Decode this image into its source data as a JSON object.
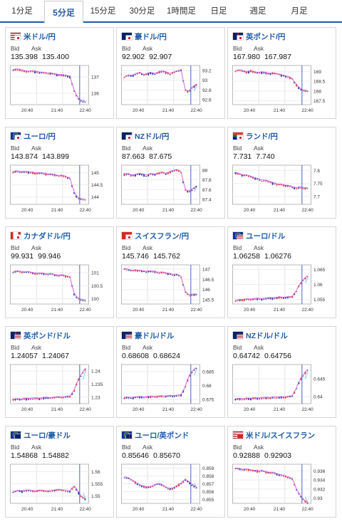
{
  "tabs": [
    {
      "label": "1分足",
      "active": false
    },
    {
      "label": "5分足",
      "active": true
    },
    {
      "label": "15分足",
      "active": false
    },
    {
      "label": "30分足",
      "active": false
    },
    {
      "label": "1時間足",
      "active": false
    },
    {
      "label": "日足",
      "active": false
    },
    {
      "label": "週足",
      "active": false
    },
    {
      "label": "月足",
      "active": false
    }
  ],
  "labels": {
    "bid": "Bid",
    "ask": "Ask"
  },
  "colors": {
    "accent": "#1d5ba8",
    "candle_up": "#e8373c",
    "candle_down": "#2f3fb5",
    "ma": "#d05ad8",
    "marker": "#4a64b9",
    "spike": "#6fc2f0"
  },
  "cards": [
    {
      "name": "米ドル/円",
      "flags": [
        "us-flag",
        "jp-flag"
      ],
      "bid": "135.398",
      "ask": "135.400",
      "chart_data": {
        "type": "candlestick",
        "yticks": [
          "137",
          "136"
        ],
        "xticks": [
          "20:40",
          "21:40",
          "22:40"
        ],
        "ylim": [
          135.3,
          137.7
        ],
        "trend": [
          137.4,
          137.45,
          137.4,
          137.35,
          137.3,
          137.35,
          137.3,
          137.25,
          137.25,
          137.2,
          137.2,
          137.15,
          137.1,
          137.1,
          137.05,
          137.0,
          136.2,
          135.7,
          135.5,
          135.45
        ],
        "break": 16
      }
    },
    {
      "name": "豪ドル/円",
      "flags": [
        "au-flag",
        "jp-flag"
      ],
      "bid": "92.902",
      "ask": "92.907",
      "chart_data": {
        "type": "candlestick",
        "yticks": [
          "93.2",
          "93",
          "92.8",
          "92.6"
        ],
        "xticks": [
          "20:40",
          "21:40",
          "22:40"
        ],
        "ylim": [
          92.5,
          93.3
        ],
        "trend": [
          93.05,
          93.1,
          93.08,
          93.12,
          93.15,
          93.1,
          93.12,
          93.15,
          93.12,
          93.15,
          93.18,
          93.15,
          93.12,
          93.15,
          93.18,
          93.2,
          92.8,
          92.75,
          92.85,
          92.9
        ],
        "break": 16
      }
    },
    {
      "name": "英ポンド/円",
      "flags": [
        "uk-flag",
        "jp-flag"
      ],
      "bid": "167.980",
      "ask": "167.987",
      "chart_data": {
        "type": "candlestick",
        "yticks": [
          "169",
          "168.5",
          "168",
          "167.5"
        ],
        "xticks": [
          "20:40",
          "21:40",
          "22:40"
        ],
        "ylim": [
          167.3,
          169.3
        ],
        "trend": [
          169.0,
          169.05,
          169.0,
          168.95,
          169.0,
          168.95,
          168.9,
          168.95,
          168.9,
          168.85,
          168.9,
          168.85,
          168.8,
          168.75,
          168.7,
          168.6,
          168.3,
          168.1,
          168.0,
          167.98
        ],
        "break": 17
      }
    },
    {
      "name": "ユーロ/円",
      "flags": [
        "eu-flag",
        "jp-flag"
      ],
      "bid": "143.874",
      "ask": "143.899",
      "chart_data": {
        "type": "candlestick",
        "yticks": [
          "145",
          "144.5",
          "144"
        ],
        "xticks": [
          "20:40",
          "21:40",
          "22:40"
        ],
        "ylim": [
          143.7,
          145.3
        ],
        "trend": [
          145.0,
          145.05,
          145.0,
          145.02,
          145.0,
          144.98,
          144.95,
          144.97,
          144.95,
          144.9,
          144.92,
          144.88,
          144.85,
          144.87,
          144.8,
          144.75,
          144.2,
          143.95,
          143.9,
          143.88
        ],
        "break": 16
      }
    },
    {
      "name": "NZドル/円",
      "flags": [
        "nz-flag",
        "jp-flag"
      ],
      "bid": "87.663",
      "ask": "87.675",
      "chart_data": {
        "type": "candlestick",
        "yticks": [
          "88",
          "87.8",
          "87.6",
          "87.4"
        ],
        "xticks": [
          "20:40",
          "21:40",
          "22:40"
        ],
        "ylim": [
          87.3,
          88.1
        ],
        "trend": [
          87.9,
          87.92,
          87.88,
          87.9,
          87.92,
          87.9,
          87.88,
          87.92,
          87.9,
          87.93,
          87.95,
          87.92,
          87.95,
          87.98,
          88.0,
          87.95,
          87.6,
          87.55,
          87.6,
          87.66
        ],
        "break": 16
      }
    },
    {
      "name": "ランド/円",
      "flags": [
        "za-flag",
        "jp-flag"
      ],
      "bid": "7.731",
      "ask": "7.740",
      "chart_data": {
        "type": "candlestick",
        "yticks": [
          "7.8",
          "7.75",
          "7.7"
        ],
        "xticks": [
          "20:40",
          "21:40",
          "22:40"
        ],
        "ylim": [
          7.67,
          7.82
        ],
        "trend": [
          7.79,
          7.785,
          7.78,
          7.78,
          7.775,
          7.77,
          7.765,
          7.76,
          7.76,
          7.755,
          7.75,
          7.745,
          7.745,
          7.74,
          7.74,
          7.735,
          7.73,
          7.735,
          7.73,
          7.731
        ],
        "break": 18
      }
    },
    {
      "name": "カナダドル/円",
      "flags": [
        "ca-flag",
        "jp-flag"
      ],
      "bid": "99.931",
      "ask": "99.946",
      "chart_data": {
        "type": "candlestick",
        "yticks": [
          "101",
          "100.5",
          "100"
        ],
        "xticks": [
          "20:40",
          "21:40",
          "22:40"
        ],
        "ylim": [
          99.8,
          101.3
        ],
        "trend": [
          101.0,
          101.05,
          101.02,
          101.0,
          101.02,
          100.98,
          100.95,
          100.97,
          100.95,
          100.92,
          100.95,
          100.9,
          100.88,
          100.9,
          100.85,
          100.82,
          100.2,
          100.0,
          99.95,
          99.93
        ],
        "break": 16
      }
    },
    {
      "name": "スイスフラン/円",
      "flags": [
        "ch-flag",
        "jp-flag"
      ],
      "bid": "145.746",
      "ask": "145.762",
      "chart_data": {
        "type": "candlestick",
        "yticks": [
          "147",
          "146.5",
          "146",
          "145.5"
        ],
        "xticks": [
          "20:40",
          "21:40",
          "22:40"
        ],
        "ylim": [
          145.3,
          147.2
        ],
        "trend": [
          147.0,
          146.95,
          146.9,
          146.92,
          146.9,
          146.88,
          146.85,
          146.88,
          146.85,
          146.8,
          146.82,
          146.78,
          146.75,
          146.7,
          146.72,
          146.6,
          145.9,
          145.7,
          145.75,
          145.75
        ],
        "break": 16
      }
    },
    {
      "name": "ユーロ/ドル",
      "flags": [
        "eu-flag",
        "us-flag"
      ],
      "bid": "1.06258",
      "ask": "1.06276",
      "chart_data": {
        "type": "candlestick",
        "yticks": [
          "1.065",
          "1.06",
          "1.055"
        ],
        "xticks": [
          "20:40",
          "21:40",
          "22:40"
        ],
        "ylim": [
          1.0535,
          1.0665
        ],
        "trend": [
          1.0545,
          1.0548,
          1.0547,
          1.055,
          1.0549,
          1.0551,
          1.0552,
          1.055,
          1.0553,
          1.0554,
          1.0553,
          1.0555,
          1.0556,
          1.0555,
          1.0557,
          1.0558,
          1.0575,
          1.06,
          1.0615,
          1.0626
        ],
        "break": 16
      }
    },
    {
      "name": "英ポンド/ドル",
      "flags": [
        "uk-flag",
        "us-flag"
      ],
      "bid": "1.24057",
      "ask": "1.24067",
      "chart_data": {
        "type": "candlestick",
        "yticks": [
          "1.24",
          "1.235",
          "1.23"
        ],
        "xticks": [
          "20:40",
          "21:40",
          "22:40"
        ],
        "ylim": [
          1.2275,
          1.2425
        ],
        "trend": [
          1.229,
          1.2292,
          1.229,
          1.2293,
          1.2292,
          1.2294,
          1.2295,
          1.2293,
          1.2296,
          1.2297,
          1.2295,
          1.2298,
          1.2299,
          1.2298,
          1.23,
          1.2302,
          1.232,
          1.236,
          1.2385,
          1.2406
        ],
        "break": 16
      }
    },
    {
      "name": "豪ドル/ドル",
      "flags": [
        "au-flag",
        "us-flag"
      ],
      "bid": "0.68608",
      "ask": "0.68624",
      "chart_data": {
        "type": "candlestick",
        "yticks": [
          "0.685",
          "0.68",
          "0.675"
        ],
        "xticks": [
          "20:40",
          "21:40",
          "22:40"
        ],
        "ylim": [
          0.6735,
          0.6875
        ],
        "trend": [
          0.6755,
          0.6756,
          0.6755,
          0.6757,
          0.6758,
          0.6757,
          0.6758,
          0.6759,
          0.6758,
          0.676,
          0.6761,
          0.676,
          0.6762,
          0.6761,
          0.6763,
          0.6765,
          0.679,
          0.683,
          0.685,
          0.6861
        ],
        "break": 16
      }
    },
    {
      "name": "NZドル/ドル",
      "flags": [
        "nz-flag",
        "us-flag"
      ],
      "bid": "0.64742",
      "ask": "0.64756",
      "chart_data": {
        "type": "candlestick",
        "yticks": [
          "0.645",
          "0.64"
        ],
        "xticks": [
          "20:40",
          "21:40",
          "22:40"
        ],
        "ylim": [
          0.638,
          0.649
        ],
        "trend": [
          0.6392,
          0.6393,
          0.6392,
          0.6394,
          0.6393,
          0.6395,
          0.6394,
          0.6395,
          0.6396,
          0.6395,
          0.6397,
          0.6396,
          0.6398,
          0.6397,
          0.6399,
          0.64,
          0.642,
          0.6445,
          0.646,
          0.6474
        ],
        "break": 16
      }
    },
    {
      "name": "ユーロ/豪ドル",
      "flags": [
        "eu-flag",
        "au-flag"
      ],
      "bid": "1.54868",
      "ask": "1.54882",
      "chart_data": {
        "type": "candlestick",
        "yticks": [
          "1.56",
          "1.555",
          "1.55"
        ],
        "xticks": [
          "20:40",
          "21:40",
          "22:40"
        ],
        "ylim": [
          1.547,
          1.563
        ],
        "trend": [
          1.5515,
          1.552,
          1.5518,
          1.552,
          1.5522,
          1.552,
          1.5518,
          1.5522,
          1.552,
          1.5518,
          1.552,
          1.5522,
          1.5525,
          1.5522,
          1.552,
          1.5518,
          1.554,
          1.552,
          1.5495,
          1.5487
        ],
        "break": 17
      }
    },
    {
      "name": "ユーロ/英ポンド",
      "flags": [
        "eu-flag",
        "uk-flag"
      ],
      "bid": "0.85646",
      "ask": "0.85670",
      "chart_data": {
        "type": "candlestick",
        "yticks": [
          "0.859",
          "0.858",
          "0.857",
          "0.856",
          "0.855"
        ],
        "xticks": [
          "20:40",
          "21:40",
          "22:40"
        ],
        "ylim": [
          0.8545,
          0.8595
        ],
        "trend": [
          0.8578,
          0.8577,
          0.8574,
          0.8571,
          0.8568,
          0.8566,
          0.8565,
          0.8566,
          0.8568,
          0.857,
          0.8568,
          0.8565,
          0.8563,
          0.8564,
          0.8567,
          0.857,
          0.8575,
          0.8572,
          0.8568,
          0.8565
        ],
        "break": 17
      }
    },
    {
      "name": "米ドル/スイスフラン",
      "flags": [
        "us-flag",
        "ch-flag"
      ],
      "bid": "0.92888",
      "ask": "0.92903",
      "chart_data": {
        "type": "candlestick",
        "yticks": [
          "0.936",
          "0.934",
          "0.932",
          "0.93"
        ],
        "xticks": [
          "20:40",
          "21:40",
          "22:40"
        ],
        "ylim": [
          0.9288,
          0.9375
        ],
        "trend": [
          0.9365,
          0.9364,
          0.9362,
          0.9363,
          0.9361,
          0.936,
          0.9358,
          0.936,
          0.9357,
          0.9355,
          0.9356,
          0.9352,
          0.935,
          0.9348,
          0.9345,
          0.9342,
          0.932,
          0.9305,
          0.9295,
          0.9289
        ],
        "break": 16
      }
    }
  ]
}
